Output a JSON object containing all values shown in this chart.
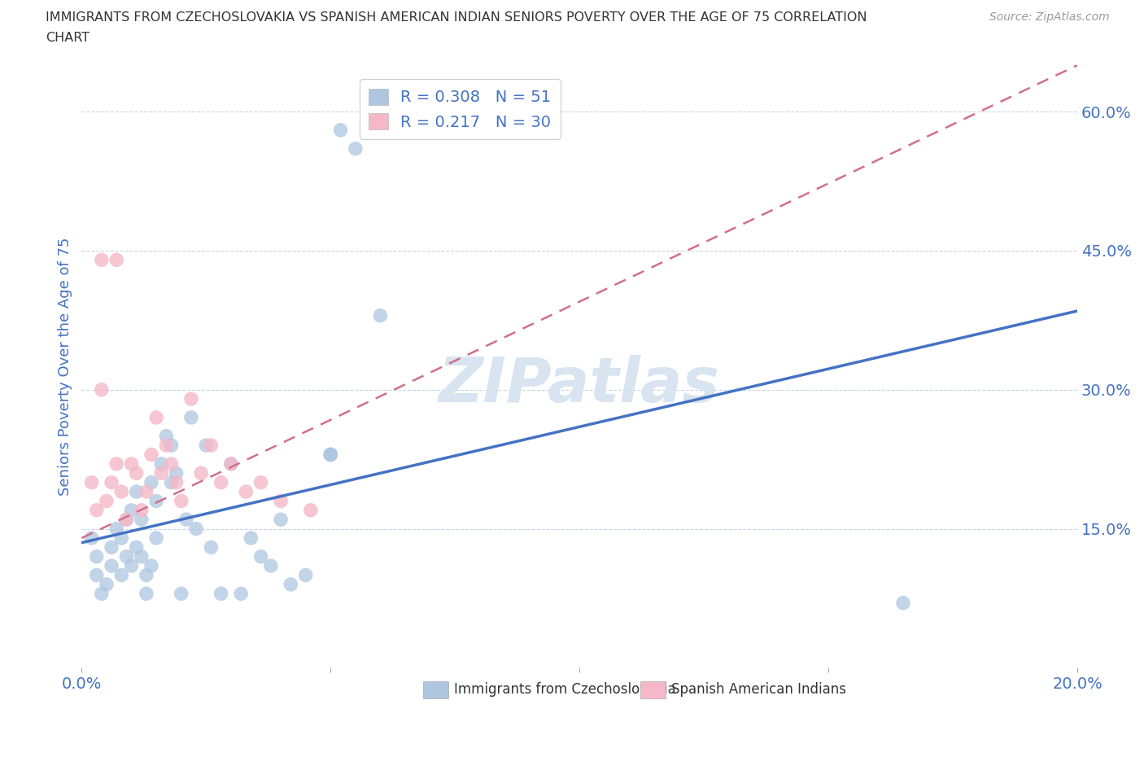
{
  "title_line1": "IMMIGRANTS FROM CZECHOSLOVAKIA VS SPANISH AMERICAN INDIAN SENIORS POVERTY OVER THE AGE OF 75 CORRELATION",
  "title_line2": "CHART",
  "source": "Source: ZipAtlas.com",
  "ylabel": "Seniors Poverty Over the Age of 75",
  "xlim": [
    0.0,
    0.2
  ],
  "ylim": [
    0.0,
    0.65
  ],
  "xtick_positions": [
    0.0,
    0.05,
    0.1,
    0.15,
    0.2
  ],
  "xticklabels": [
    "0.0%",
    "",
    "",
    "",
    "20.0%"
  ],
  "ytick_positions": [
    0.15,
    0.3,
    0.45,
    0.6
  ],
  "ytick_labels": [
    "15.0%",
    "30.0%",
    "45.0%",
    "60.0%"
  ],
  "watermark": "ZIPatlas",
  "blue_R": 0.308,
  "blue_N": 51,
  "pink_R": 0.217,
  "pink_N": 30,
  "blue_color": "#aec6e0",
  "blue_line_color": "#4472c4",
  "pink_color": "#f4b8c8",
  "pink_line_color": "#d0708a",
  "grid_color": "#c8d4e8",
  "background_color": "#ffffff",
  "title_color": "#333333",
  "legend_text_color": "#4472c4",
  "tick_label_color": "#4472c4",
  "ylabel_color": "#4472c4",
  "blue_line_y0": 0.135,
  "blue_line_y1": 0.385,
  "pink_line_y0": 0.14,
  "pink_line_y1": 0.65,
  "blue_scatter_x": [
    0.002,
    0.003,
    0.003,
    0.004,
    0.005,
    0.006,
    0.006,
    0.007,
    0.008,
    0.008,
    0.009,
    0.009,
    0.01,
    0.01,
    0.011,
    0.011,
    0.012,
    0.012,
    0.013,
    0.013,
    0.014,
    0.014,
    0.015,
    0.015,
    0.016,
    0.017,
    0.018,
    0.018,
    0.019,
    0.02,
    0.021,
    0.022,
    0.023,
    0.025,
    0.026,
    0.028,
    0.03,
    0.032,
    0.034,
    0.036,
    0.038,
    0.04,
    0.042,
    0.045,
    0.05,
    0.052,
    0.055,
    0.06,
    0.165,
    0.05,
    0.05
  ],
  "blue_scatter_y": [
    0.14,
    0.12,
    0.1,
    0.08,
    0.09,
    0.11,
    0.13,
    0.15,
    0.1,
    0.14,
    0.12,
    0.16,
    0.11,
    0.17,
    0.13,
    0.19,
    0.12,
    0.16,
    0.08,
    0.1,
    0.11,
    0.2,
    0.14,
    0.18,
    0.22,
    0.25,
    0.24,
    0.2,
    0.21,
    0.08,
    0.16,
    0.27,
    0.15,
    0.24,
    0.13,
    0.08,
    0.22,
    0.08,
    0.14,
    0.12,
    0.11,
    0.16,
    0.09,
    0.1,
    0.23,
    0.58,
    0.56,
    0.38,
    0.07,
    0.23,
    0.23
  ],
  "pink_scatter_x": [
    0.002,
    0.003,
    0.004,
    0.005,
    0.006,
    0.007,
    0.008,
    0.009,
    0.01,
    0.011,
    0.012,
    0.013,
    0.014,
    0.015,
    0.016,
    0.017,
    0.018,
    0.019,
    0.02,
    0.022,
    0.024,
    0.026,
    0.028,
    0.03,
    0.033,
    0.036,
    0.04,
    0.046,
    0.004,
    0.007
  ],
  "pink_scatter_y": [
    0.2,
    0.17,
    0.3,
    0.18,
    0.2,
    0.22,
    0.19,
    0.16,
    0.22,
    0.21,
    0.17,
    0.19,
    0.23,
    0.27,
    0.21,
    0.24,
    0.22,
    0.2,
    0.18,
    0.29,
    0.21,
    0.24,
    0.2,
    0.22,
    0.19,
    0.2,
    0.18,
    0.17,
    0.44,
    0.44
  ]
}
